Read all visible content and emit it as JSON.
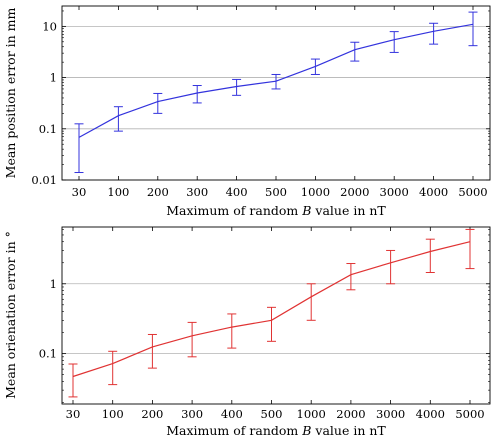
{
  "chart_data": [
    {
      "type": "line",
      "title": "",
      "xlabel": {
        "before": "Maximum of random ",
        "var": "B",
        "after": " value in nT"
      },
      "ylabel": "Mean position error in mm",
      "categories": [
        "30",
        "100",
        "200",
        "300",
        "400",
        "500",
        "1000",
        "2000",
        "3000",
        "4000",
        "5000"
      ],
      "yscale": "log",
      "ylim": [
        0.01,
        25
      ],
      "yticks": [
        0.01,
        0.1,
        1,
        10
      ],
      "ytick_labels": [
        "0.01",
        "0.1",
        "1",
        "10"
      ],
      "grid": "horizontal",
      "series": [
        {
          "color": "#3333dd",
          "values": [
            0.068,
            0.18,
            0.34,
            0.5,
            0.67,
            0.85,
            1.65,
            3.5,
            5.5,
            8.0,
            11.0
          ],
          "err_low": [
            0.014,
            0.09,
            0.2,
            0.32,
            0.45,
            0.6,
            1.15,
            2.1,
            3.1,
            4.5,
            4.2
          ],
          "err_high": [
            0.125,
            0.27,
            0.49,
            0.7,
            0.92,
            1.15,
            2.3,
            4.9,
            7.9,
            11.5,
            19.0
          ]
        }
      ]
    },
    {
      "type": "line",
      "title": "",
      "xlabel": {
        "before": "Maximum of random ",
        "var": "B",
        "after": " value in nT"
      },
      "ylabel": "Mean orienation error in °",
      "categories": [
        "30",
        "100",
        "200",
        "300",
        "400",
        "500",
        "1000",
        "2000",
        "3000",
        "4000",
        "5000"
      ],
      "yscale": "log",
      "ylim": [
        0.019,
        6.5
      ],
      "yticks": [
        0.1,
        1
      ],
      "ytick_labels": [
        "0.1",
        "1"
      ],
      "grid": "horizontal",
      "series": [
        {
          "color": "#e03333",
          "values": [
            0.047,
            0.072,
            0.125,
            0.18,
            0.24,
            0.3,
            0.65,
            1.35,
            2.0,
            2.9,
            4.0
          ],
          "err_low": [
            0.024,
            0.036,
            0.062,
            0.09,
            0.12,
            0.15,
            0.3,
            0.82,
            1.0,
            1.45,
            1.65
          ],
          "err_high": [
            0.071,
            0.108,
            0.188,
            0.28,
            0.37,
            0.46,
            1.0,
            1.95,
            3.0,
            4.35,
            6.0
          ]
        }
      ]
    }
  ]
}
